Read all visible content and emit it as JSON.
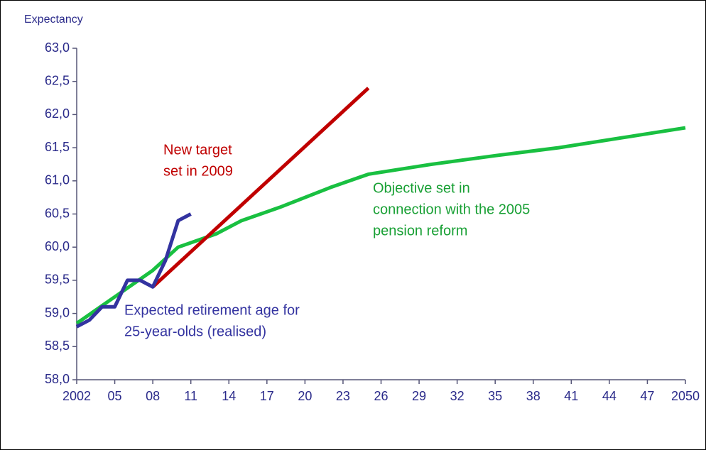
{
  "chart_data": {
    "type": "line",
    "y_axis_label": "Expectancy",
    "xlim": [
      2002,
      2050
    ],
    "ylim": [
      58,
      63
    ],
    "xticks": [
      2002,
      {
        "value": 2005,
        "label": "05"
      },
      {
        "value": 2008,
        "label": "08"
      },
      {
        "value": 2011,
        "label": "11"
      },
      {
        "value": 2014,
        "label": "14"
      },
      {
        "value": 2017,
        "label": "17"
      },
      {
        "value": 2020,
        "label": "20"
      },
      {
        "value": 2023,
        "label": "23"
      },
      {
        "value": 2026,
        "label": "26"
      },
      {
        "value": 2029,
        "label": "29"
      },
      {
        "value": 2032,
        "label": "32"
      },
      {
        "value": 2035,
        "label": "35"
      },
      {
        "value": 2038,
        "label": "38"
      },
      {
        "value": 2041,
        "label": "41"
      },
      {
        "value": 2044,
        "label": "44"
      },
      {
        "value": 2047,
        "label": "47"
      },
      2050
    ],
    "yticks": [
      {
        "value": 58,
        "label": "58,0"
      },
      {
        "value": 58.5,
        "label": "58,5"
      },
      {
        "value": 59,
        "label": "59,0"
      },
      {
        "value": 59.5,
        "label": "59,5"
      },
      {
        "value": 60,
        "label": "60,0"
      },
      {
        "value": 60.5,
        "label": "60,5"
      },
      {
        "value": 61,
        "label": "61,0"
      },
      {
        "value": 61.5,
        "label": "61,5"
      },
      {
        "value": 62,
        "label": "62,0"
      },
      {
        "value": 62.5,
        "label": "62,5"
      },
      {
        "value": 63,
        "label": "63,0"
      }
    ],
    "grid": false,
    "series": [
      {
        "color": "#19c041",
        "x": [
          2002,
          2005,
          2008,
          2010,
          2013,
          2015,
          2018,
          2020,
          2022,
          2025,
          2030,
          2035,
          2040,
          2045,
          2050
        ],
        "values": [
          58.85,
          59.25,
          59.65,
          60.0,
          60.2,
          60.4,
          60.6,
          60.75,
          60.9,
          61.1,
          61.25,
          61.38,
          61.5,
          61.65,
          61.8
        ]
      },
      {
        "color": "#c00000",
        "x": [
          2008,
          2025
        ],
        "values": [
          59.4,
          62.4
        ]
      },
      {
        "color": "#3333a0",
        "x": [
          2002,
          2003,
          2004,
          2005,
          2006,
          2007,
          2008,
          2009,
          2010,
          2011
        ],
        "values": [
          58.8,
          58.9,
          59.1,
          59.1,
          59.5,
          59.5,
          59.4,
          59.8,
          60.4,
          60.5
        ]
      }
    ],
    "annotations": [
      {
        "lines": [
          "New target",
          "set in 2009"
        ],
        "color": "#c00000"
      },
      {
        "lines": [
          "Objective set in",
          "connection with the 2005",
          "pension reform"
        ],
        "color": "#19a035"
      },
      {
        "lines": [
          "Expected retirement age for",
          "25-year-olds (realised)"
        ],
        "color": "#3333a0"
      }
    ]
  }
}
